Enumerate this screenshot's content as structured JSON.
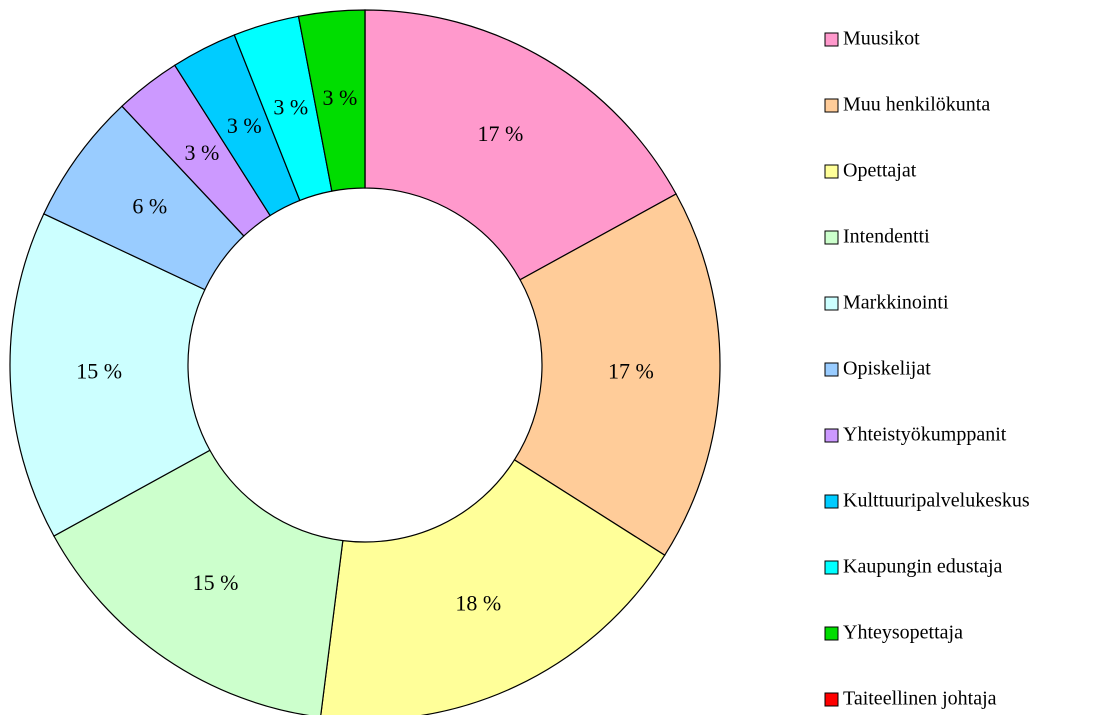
{
  "chart_data": {
    "type": "donut",
    "categories": [
      "Muusikot",
      "Muu henkilökunta",
      "Opettajat",
      "Intendentti",
      "Markkinointi",
      "Opiskelijat",
      "Yhteistyökumppanit",
      "Kulttuuripalvelukeskus",
      "Kaupungin edustaja",
      "Yhteysopettaja",
      "Taiteellinen johtaja"
    ],
    "values": [
      17,
      17,
      18,
      15,
      15,
      6,
      3,
      3,
      3,
      3,
      0
    ],
    "value_labels": [
      "17 %",
      "17 %",
      "18 %",
      "15 %",
      "15 %",
      "6 %",
      "3 %",
      "3 %",
      "3 %",
      "3 %",
      null
    ],
    "colors": [
      "#ff99cc",
      "#ffcc99",
      "#ffff99",
      "#ccffcc",
      "#ccffff",
      "#99ccff",
      "#cc99ff",
      "#00ccff",
      "#00ffff",
      "#00dd00",
      "#ff0000"
    ],
    "legend": "right"
  }
}
